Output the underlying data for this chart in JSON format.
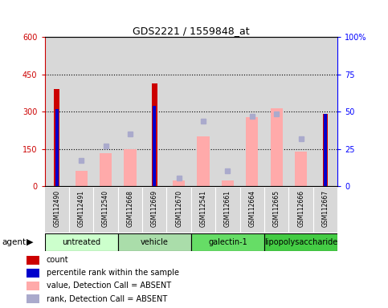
{
  "title": "GDS2221 / 1559848_at",
  "samples": [
    "GSM112490",
    "GSM112491",
    "GSM112540",
    "GSM112668",
    "GSM112669",
    "GSM112670",
    "GSM112541",
    "GSM112661",
    "GSM112664",
    "GSM112665",
    "GSM112666",
    "GSM112667"
  ],
  "group_defs": [
    {
      "label": "untreated",
      "start": 0,
      "end": 2,
      "color": "#ccffcc"
    },
    {
      "label": "vehicle",
      "start": 3,
      "end": 5,
      "color": "#aaddaa"
    },
    {
      "label": "galectin-1",
      "start": 6,
      "end": 8,
      "color": "#66dd66"
    },
    {
      "label": "lipopolysaccharide",
      "start": 9,
      "end": 11,
      "color": "#44cc44"
    }
  ],
  "count_values": [
    390,
    null,
    null,
    null,
    415,
    null,
    null,
    null,
    null,
    null,
    null,
    290
  ],
  "percentile_values": [
    310,
    null,
    null,
    null,
    322,
    null,
    null,
    null,
    null,
    null,
    null,
    290
  ],
  "value_absent": [
    null,
    62,
    133,
    148,
    null,
    22,
    202,
    22,
    278,
    315,
    138,
    null
  ],
  "rank_absent": [
    null,
    105,
    162,
    212,
    null,
    33,
    262,
    62,
    282,
    292,
    192,
    null
  ],
  "ylim_left": [
    0,
    600
  ],
  "ylim_right": [
    0,
    100
  ],
  "yticks_left": [
    0,
    150,
    300,
    450,
    600
  ],
  "yticks_right": [
    0,
    25,
    50,
    75,
    100
  ],
  "ytick_labels_left": [
    "0",
    "150",
    "300",
    "450",
    "600"
  ],
  "ytick_labels_right": [
    "0",
    "25",
    "50",
    "75",
    "100%"
  ],
  "hline_values": [
    150,
    300,
    450
  ],
  "count_color": "#cc0000",
  "percentile_color": "#0000cc",
  "value_absent_color": "#ffaaaa",
  "rank_absent_color": "#aaaacc",
  "cell_bg_color": "#d8d8d8",
  "plot_bg": "#ffffff"
}
